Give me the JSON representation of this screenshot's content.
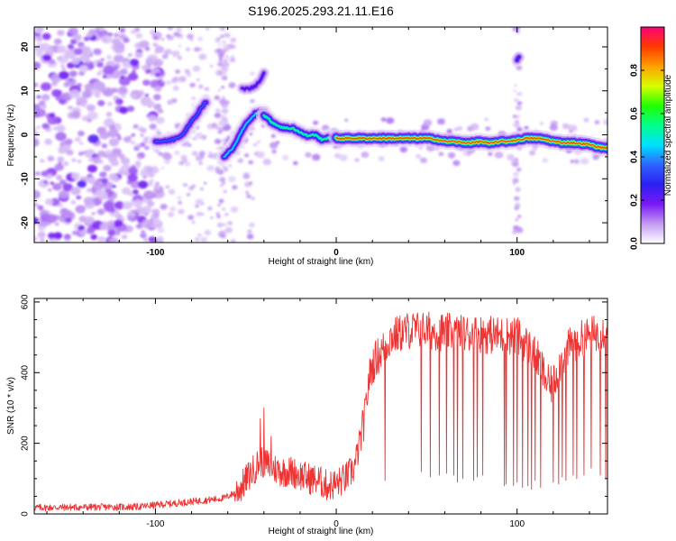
{
  "figure_title": "S196.2025.293.21.11.E16",
  "chart_data": [
    {
      "type": "heatmap",
      "title": "S196.2025.293.21.11.E16",
      "xlabel": "Height of straight line (km)",
      "ylabel": "Frequency (Hz)",
      "xlim": [
        -167,
        150
      ],
      "ylim": [
        -24.5,
        24.5
      ],
      "x_ticks": [
        -100,
        0,
        100
      ],
      "x_tick_labels": [
        "-100",
        "0",
        "100"
      ],
      "y_ticks": [
        20,
        10,
        0,
        -10,
        -20
      ],
      "y_tick_labels": [
        "20",
        "10",
        "0",
        "-10",
        "-20"
      ],
      "colorbar": {
        "label": "Normalized spectral amplitude",
        "range": [
          0,
          1
        ],
        "ticks": [
          0,
          0.2,
          0.4,
          0.6,
          0.8
        ],
        "tick_labels": [
          "0.0",
          "0.2",
          "0.4",
          "0.6",
          "0.8"
        ],
        "colors": [
          "#ffffff",
          "#c39bf2",
          "#7a19f5",
          "#2a1ff0",
          "#2f63ff",
          "#00e0ff",
          "#00ff8a",
          "#21ff00",
          "#d8ff00",
          "#ffa000",
          "#ff3a00",
          "#ff007a"
        ]
      },
      "ridge_segments": [
        {
          "name": "early-rise",
          "x": [
            -100,
            -95,
            -90,
            -85,
            -82,
            -78,
            -75,
            -72
          ],
          "y": [
            -1.5,
            -1.5,
            -1,
            0,
            2,
            4,
            6,
            7.5
          ],
          "amp": 0.35
        },
        {
          "name": "rise-peak",
          "x": [
            -62,
            -57,
            -52,
            -48,
            -44,
            -40
          ],
          "y": [
            -5,
            -3,
            1,
            3.5,
            5,
            5
          ],
          "amp": 0.45
        },
        {
          "name": "hook",
          "x": [
            -52,
            -48,
            -45,
            -42,
            -40
          ],
          "y": [
            10.5,
            10.5,
            11,
            12.5,
            14
          ],
          "amp": 0.25
        },
        {
          "name": "descent",
          "x": [
            -40,
            -36,
            -32,
            -28,
            -24,
            -20,
            -16,
            -12,
            -8,
            -4,
            0
          ],
          "y": [
            4.5,
            3,
            2,
            1.5,
            1.5,
            0.5,
            -0.2,
            0,
            -1,
            -0.8,
            -0.6
          ],
          "amp": 0.55
        },
        {
          "name": "main",
          "x": [
            0,
            5,
            10,
            15,
            20,
            30,
            40,
            45,
            50,
            55,
            60,
            65,
            70,
            75,
            80,
            85,
            90,
            94,
            100,
            105,
            110,
            115,
            120,
            125,
            130,
            135,
            140,
            145,
            150
          ],
          "y": [
            -0.8,
            -0.8,
            -0.8,
            -0.8,
            -0.8,
            -0.8,
            -0.8,
            -0.8,
            -0.8,
            -1,
            -1.5,
            -1.5,
            -1.8,
            -1.8,
            -1.5,
            -2,
            -1.5,
            -1.5,
            -1.2,
            -0.8,
            -0.8,
            -1,
            -1.5,
            -1.8,
            -1.8,
            -2,
            -2.2,
            -2.8,
            -3
          ],
          "amp": 0.9
        },
        {
          "name": "isolated-spot",
          "x": [
            100,
            101
          ],
          "y": [
            17,
            17.5
          ],
          "amp": 0.3
        }
      ]
    },
    {
      "type": "line",
      "xlabel": "Height of straight line (km)",
      "ylabel": "SNR (10 * v/v)",
      "xlim": [
        -167,
        150
      ],
      "ylim": [
        0,
        610
      ],
      "x_ticks": [
        -100,
        0,
        100
      ],
      "x_tick_labels": [
        "-100",
        "0",
        "100"
      ],
      "y_ticks": [
        0,
        200,
        400,
        600
      ],
      "y_tick_labels": [
        "0",
        "200",
        "400",
        "600"
      ],
      "series": [
        {
          "name": "SNR",
          "color": "#ee3333",
          "envelope_x": [
            -167,
            -110,
            -90,
            -70,
            -62,
            -56,
            -52,
            -48,
            -45,
            -42,
            -38,
            -35,
            -30,
            -25,
            -20,
            -15,
            -10,
            -5,
            0,
            5,
            10,
            13,
            16,
            18,
            20,
            22,
            25,
            28,
            30,
            35,
            40,
            50,
            60,
            70,
            80,
            90,
            100,
            105,
            110,
            113,
            116,
            118,
            120,
            125,
            130,
            140,
            150
          ],
          "envelope_base": [
            18,
            20,
            30,
            40,
            45,
            60,
            80,
            110,
            130,
            150,
            140,
            130,
            120,
            120,
            110,
            100,
            95,
            80,
            85,
            100,
            130,
            200,
            280,
            380,
            420,
            440,
            460,
            480,
            500,
            510,
            520,
            520,
            515,
            510,
            510,
            505,
            505,
            480,
            450,
            420,
            380,
            360,
            370,
            440,
            480,
            505,
            520
          ],
          "spikes": [
            {
              "x": -40,
              "y": 300
            },
            {
              "x": -42,
              "y": 270
            },
            {
              "x": -36,
              "y": 220
            },
            {
              "x": 27,
              "y": 95
            },
            {
              "x": 47,
              "y": 120
            },
            {
              "x": 52,
              "y": 105
            },
            {
              "x": 57,
              "y": 110
            },
            {
              "x": 61,
              "y": 115
            },
            {
              "x": 65,
              "y": 110
            },
            {
              "x": 67,
              "y": 90
            },
            {
              "x": 70,
              "y": 100
            },
            {
              "x": 76,
              "y": 95
            },
            {
              "x": 78,
              "y": 105
            },
            {
              "x": 81,
              "y": 110
            },
            {
              "x": 93,
              "y": 80
            },
            {
              "x": 94,
              "y": 85
            },
            {
              "x": 98,
              "y": 80
            },
            {
              "x": 100,
              "y": 90
            },
            {
              "x": 103,
              "y": 75
            },
            {
              "x": 106,
              "y": 80
            },
            {
              "x": 108,
              "y": 70
            },
            {
              "x": 110,
              "y": 95
            },
            {
              "x": 113,
              "y": 75
            },
            {
              "x": 120,
              "y": 90
            },
            {
              "x": 123,
              "y": 85
            },
            {
              "x": 125,
              "y": 105
            },
            {
              "x": 127,
              "y": 95
            },
            {
              "x": 131,
              "y": 110
            },
            {
              "x": 133,
              "y": 100
            },
            {
              "x": 137,
              "y": 110
            },
            {
              "x": 141,
              "y": 130
            },
            {
              "x": 146,
              "y": 110
            },
            {
              "x": 149,
              "y": 100
            }
          ]
        }
      ]
    }
  ]
}
